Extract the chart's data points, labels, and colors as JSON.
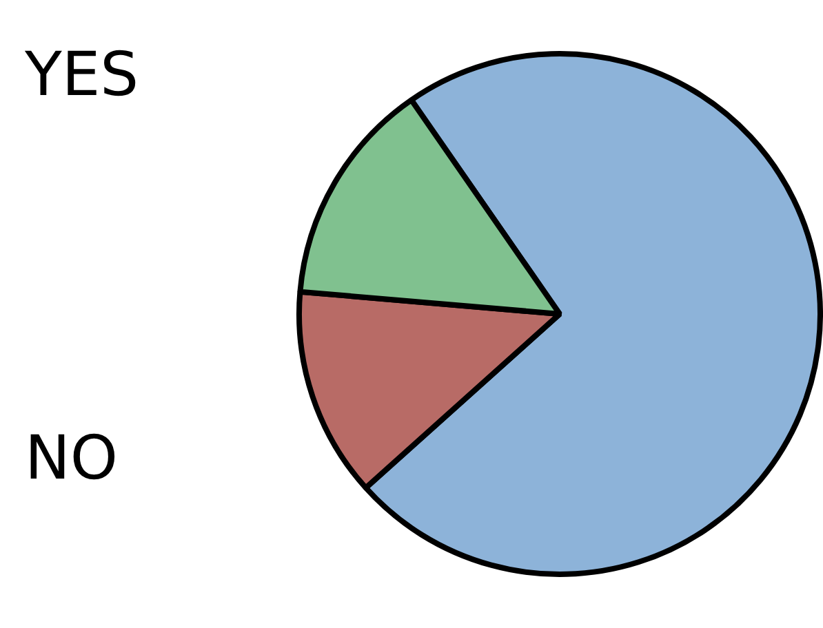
{
  "chart_data": {
    "type": "pie",
    "categories": [
      null,
      "NO",
      "YES"
    ],
    "values": [
      73,
      13,
      14
    ],
    "colors": [
      "#8db3d9",
      "#b86b66",
      "#80c18f"
    ],
    "legend": false
  }
}
